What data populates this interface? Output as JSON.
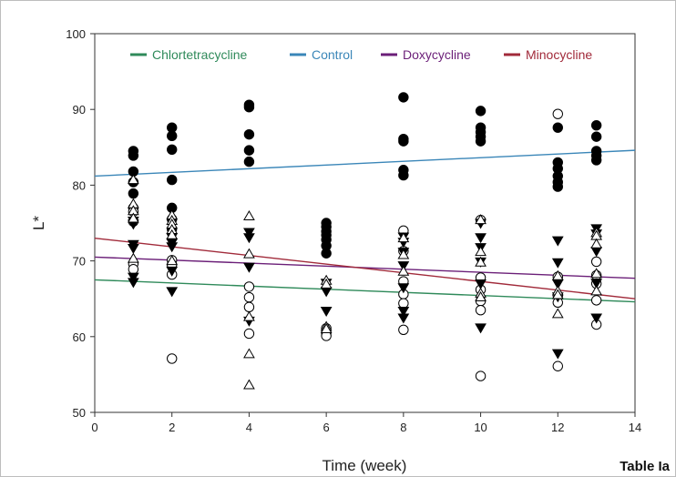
{
  "figure_label": "Table Ia",
  "chart_data": {
    "type": "scatter",
    "xlabel": "Time (week)",
    "ylabel": "L*",
    "xlim": [
      0,
      14
    ],
    "ylim": [
      50,
      100
    ],
    "xticks": [
      "0",
      "2",
      "4",
      "6",
      "8",
      "10",
      "12",
      "14"
    ],
    "yticks": [
      "50",
      "60",
      "70",
      "80",
      "90",
      "100"
    ],
    "grid": false,
    "legend_position": "top",
    "legend": [
      {
        "label": "Chlortetracycline",
        "color": "#2f8a5a"
      },
      {
        "label": "Control",
        "color": "#3a86b8"
      },
      {
        "label": "Doxycycline",
        "color": "#6b1f78"
      },
      {
        "label": "Minocycline",
        "color": "#a12a3a"
      }
    ],
    "trend_lines": [
      {
        "name": "Chlortetracycline",
        "color": "#2f8a5a",
        "x": [
          0,
          14
        ],
        "y": [
          67.5,
          64.6
        ]
      },
      {
        "name": "Control",
        "color": "#3a86b8",
        "x": [
          0,
          14
        ],
        "y": [
          81.2,
          84.6
        ]
      },
      {
        "name": "Doxycycline",
        "color": "#6b1f78",
        "x": [
          0,
          14
        ],
        "y": [
          70.5,
          67.7
        ]
      },
      {
        "name": "Minocycline",
        "color": "#a12a3a",
        "x": [
          0,
          14
        ],
        "y": [
          73.0,
          65.0
        ]
      }
    ],
    "series": [
      {
        "marker": "filled-circle",
        "points": [
          [
            1,
            84.5
          ],
          [
            1,
            83.9
          ],
          [
            1,
            81.8
          ],
          [
            1,
            80.4
          ],
          [
            1,
            78.9
          ],
          [
            1,
            77.0
          ],
          [
            2,
            87.6
          ],
          [
            2,
            86.5
          ],
          [
            2,
            84.7
          ],
          [
            2,
            80.7
          ],
          [
            2,
            77.0
          ],
          [
            2,
            75.5
          ],
          [
            2,
            74.2
          ],
          [
            4,
            90.6
          ],
          [
            4,
            90.3
          ],
          [
            4,
            86.7
          ],
          [
            4,
            84.6
          ],
          [
            4,
            83.1
          ],
          [
            6,
            75.0
          ],
          [
            6,
            74.5
          ],
          [
            6,
            73.9
          ],
          [
            6,
            73.4
          ],
          [
            6,
            72.8
          ],
          [
            6,
            72.0
          ],
          [
            6,
            71.0
          ],
          [
            8,
            91.6
          ],
          [
            8,
            86.1
          ],
          [
            8,
            85.8
          ],
          [
            8,
            82.0
          ],
          [
            8,
            81.3
          ],
          [
            10,
            89.8
          ],
          [
            10,
            87.6
          ],
          [
            10,
            87.0
          ],
          [
            10,
            86.4
          ],
          [
            10,
            85.8
          ],
          [
            12,
            87.6
          ],
          [
            12,
            83.0
          ],
          [
            12,
            82.2
          ],
          [
            12,
            81.2
          ],
          [
            12,
            80.4
          ],
          [
            12,
            79.8
          ],
          [
            13,
            87.9
          ],
          [
            13,
            86.4
          ],
          [
            13,
            84.5
          ],
          [
            13,
            83.9
          ],
          [
            13,
            83.3
          ]
        ]
      },
      {
        "marker": "open-circle",
        "points": [
          [
            1,
            76.5
          ],
          [
            1,
            75.2
          ],
          [
            1,
            69.6
          ],
          [
            1,
            68.9
          ],
          [
            2,
            70.1
          ],
          [
            2,
            69.5
          ],
          [
            2,
            68.2
          ],
          [
            2,
            57.1
          ],
          [
            4,
            66.6
          ],
          [
            4,
            65.2
          ],
          [
            4,
            63.9
          ],
          [
            4,
            60.4
          ],
          [
            6,
            61.1
          ],
          [
            6,
            60.5
          ],
          [
            6,
            60.1
          ],
          [
            8,
            74.0
          ],
          [
            8,
            71.3
          ],
          [
            8,
            67.3
          ],
          [
            8,
            65.6
          ],
          [
            8,
            64.4
          ],
          [
            8,
            60.9
          ],
          [
            10,
            75.4
          ],
          [
            10,
            67.8
          ],
          [
            10,
            66.2
          ],
          [
            10,
            64.7
          ],
          [
            10,
            63.5
          ],
          [
            10,
            54.8
          ],
          [
            12,
            89.4
          ],
          [
            12,
            67.9
          ],
          [
            12,
            65.4
          ],
          [
            12,
            64.5
          ],
          [
            12,
            56.1
          ],
          [
            13,
            69.9
          ],
          [
            13,
            68.1
          ],
          [
            13,
            67.0
          ],
          [
            13,
            64.8
          ],
          [
            13,
            61.6
          ]
        ]
      },
      {
        "marker": "filled-down-triangle",
        "points": [
          [
            1,
            75.3
          ],
          [
            1,
            74.9
          ],
          [
            1,
            72.2
          ],
          [
            1,
            71.7
          ],
          [
            1,
            67.9
          ],
          [
            1,
            67.2
          ],
          [
            2,
            73.1
          ],
          [
            2,
            72.4
          ],
          [
            2,
            71.9
          ],
          [
            2,
            68.7
          ],
          [
            2,
            66.0
          ],
          [
            4,
            73.8
          ],
          [
            4,
            73.1
          ],
          [
            4,
            69.2
          ],
          [
            4,
            62.1
          ],
          [
            6,
            67.1
          ],
          [
            6,
            66.0
          ],
          [
            6,
            63.4
          ],
          [
            8,
            73.2
          ],
          [
            8,
            72.5
          ],
          [
            8,
            71.2
          ],
          [
            8,
            69.4
          ],
          [
            8,
            66.5
          ],
          [
            8,
            63.4
          ],
          [
            8,
            62.5
          ],
          [
            10,
            75.0
          ],
          [
            10,
            73.1
          ],
          [
            10,
            71.8
          ],
          [
            10,
            69.9
          ],
          [
            10,
            67.0
          ],
          [
            10,
            61.2
          ],
          [
            12,
            72.7
          ],
          [
            12,
            69.8
          ],
          [
            12,
            67.0
          ],
          [
            12,
            65.3
          ],
          [
            12,
            57.8
          ],
          [
            13,
            74.3
          ],
          [
            13,
            73.6
          ],
          [
            13,
            71.3
          ],
          [
            13,
            67.1
          ],
          [
            13,
            62.5
          ]
        ]
      },
      {
        "marker": "open-up-triangle",
        "points": [
          [
            1,
            80.7
          ],
          [
            1,
            77.5
          ],
          [
            1,
            76.6
          ],
          [
            1,
            75.6
          ],
          [
            1,
            70.3
          ],
          [
            2,
            76.0
          ],
          [
            2,
            75.3
          ],
          [
            2,
            74.8
          ],
          [
            2,
            74.1
          ],
          [
            2,
            73.4
          ],
          [
            2,
            70.0
          ],
          [
            4,
            75.9
          ],
          [
            4,
            70.9
          ],
          [
            4,
            62.6
          ],
          [
            4,
            57.7
          ],
          [
            4,
            53.6
          ],
          [
            6,
            67.4
          ],
          [
            6,
            66.9
          ],
          [
            6,
            61.3
          ],
          [
            6,
            61.0
          ],
          [
            8,
            73.0
          ],
          [
            8,
            70.8
          ],
          [
            8,
            68.6
          ],
          [
            10,
            75.4
          ],
          [
            10,
            71.2
          ],
          [
            10,
            69.8
          ],
          [
            10,
            65.7
          ],
          [
            10,
            65.2
          ],
          [
            12,
            68.0
          ],
          [
            12,
            66.0
          ],
          [
            12,
            65.5
          ],
          [
            12,
            63.0
          ],
          [
            13,
            73.7
          ],
          [
            13,
            73.3
          ],
          [
            13,
            72.2
          ],
          [
            13,
            68.3
          ],
          [
            13,
            66.0
          ]
        ]
      }
    ]
  }
}
